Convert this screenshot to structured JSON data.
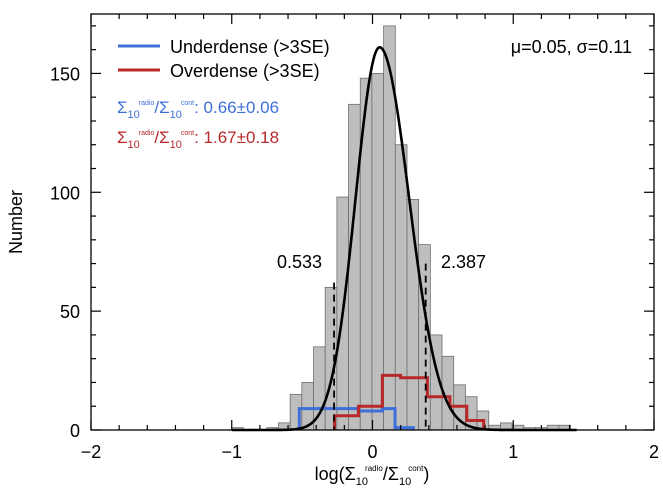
{
  "chart_data": {
    "type": "bar",
    "title": "",
    "xlabel_parts": {
      "prefix": "log(",
      "sym1": "Σ",
      "sub1": "10",
      "sup1": "radio",
      "slash": "/",
      "sym2": "Σ",
      "sub2": "10",
      "sup2": "cont",
      "suffix": ")"
    },
    "ylabel": "Number",
    "xlim": [
      -2,
      2
    ],
    "ylim": [
      0,
      175
    ],
    "xticks": [
      -2,
      -1,
      0,
      1,
      2
    ],
    "xtick_labels": [
      "−2",
      "−1",
      "0",
      "1",
      "2"
    ],
    "yticks": [
      0,
      50,
      100,
      150
    ],
    "ytick_labels": [
      "0",
      "50",
      "100",
      "150"
    ],
    "bin_width": 0.083,
    "histogram": {
      "name": "All",
      "color": "#bebebe",
      "bins": [
        {
          "x0": -1.0,
          "x1": -0.917,
          "count": 1
        },
        {
          "x0": -0.917,
          "x1": -0.834,
          "count": 0
        },
        {
          "x0": -0.834,
          "x1": -0.751,
          "count": 0
        },
        {
          "x0": -0.751,
          "x1": -0.668,
          "count": 1
        },
        {
          "x0": -0.668,
          "x1": -0.585,
          "count": 3
        },
        {
          "x0": -0.585,
          "x1": -0.502,
          "count": 15
        },
        {
          "x0": -0.502,
          "x1": -0.419,
          "count": 20
        },
        {
          "x0": -0.419,
          "x1": -0.336,
          "count": 35
        },
        {
          "x0": -0.336,
          "x1": -0.253,
          "count": 60
        },
        {
          "x0": -0.253,
          "x1": -0.17,
          "count": 98
        },
        {
          "x0": -0.17,
          "x1": -0.087,
          "count": 137
        },
        {
          "x0": -0.087,
          "x1": -0.004,
          "count": 148
        },
        {
          "x0": -0.004,
          "x1": 0.079,
          "count": 150
        },
        {
          "x0": 0.079,
          "x1": 0.162,
          "count": 170
        },
        {
          "x0": 0.162,
          "x1": 0.245,
          "count": 120
        },
        {
          "x0": 0.245,
          "x1": 0.328,
          "count": 97
        },
        {
          "x0": 0.328,
          "x1": 0.411,
          "count": 78
        },
        {
          "x0": 0.411,
          "x1": 0.494,
          "count": 40
        },
        {
          "x0": 0.494,
          "x1": 0.577,
          "count": 31
        },
        {
          "x0": 0.577,
          "x1": 0.66,
          "count": 19
        },
        {
          "x0": 0.66,
          "x1": 0.743,
          "count": 14
        },
        {
          "x0": 0.743,
          "x1": 0.826,
          "count": 8
        },
        {
          "x0": 0.826,
          "x1": 0.909,
          "count": 2
        },
        {
          "x0": 0.909,
          "x1": 0.992,
          "count": 3
        },
        {
          "x0": 0.992,
          "x1": 1.075,
          "count": 2
        },
        {
          "x0": 1.075,
          "x1": 1.158,
          "count": 1
        },
        {
          "x0": 1.158,
          "x1": 1.241,
          "count": 1
        },
        {
          "x0": 1.241,
          "x1": 1.324,
          "count": 2
        },
        {
          "x0": 1.324,
          "x1": 1.407,
          "count": 2
        }
      ]
    },
    "fit_curve": {
      "color": "#000000",
      "x_min": -1.0,
      "x_max": 1.45,
      "peak": 161,
      "center": 0.05,
      "sigma_left": 0.17,
      "sigma_right": 0.21
    },
    "series": [
      {
        "name": "Underdense (>3SE)",
        "color": "#3f6fd9",
        "edges": [
          -0.52,
          -0.27,
          -0.1,
          0.07,
          0.16,
          0.29
        ],
        "counts": [
          9,
          9,
          8,
          9,
          1
        ]
      },
      {
        "name": "Overdense (>3SE)",
        "color": "#b8292a",
        "edges": [
          -0.27,
          -0.1,
          0.07,
          0.2,
          0.39,
          0.55,
          0.67,
          0.79
        ],
        "counts": [
          6,
          10,
          23,
          22,
          14,
          10,
          4
        ]
      }
    ],
    "threshold_lines": [
      {
        "x": -0.273,
        "y_top": 62,
        "label": "0.533"
      },
      {
        "x": 0.378,
        "y_top": 70,
        "label": "2.387"
      }
    ],
    "stats_label": "μ=0.05, σ=0.11",
    "ratio_labels": [
      {
        "color": "#3f6fd9",
        "sym1": "Σ",
        "sub1": "10",
        "sup1": "radio",
        "slash": "/",
        "sym2": "Σ",
        "sub2": "10",
        "sup2": "cont",
        "value": ": 0.66±0.06"
      },
      {
        "color": "#b8292a",
        "sym1": "Σ",
        "sub1": "10",
        "sup1": "radio",
        "slash": "/",
        "sym2": "Σ",
        "sub2": "10",
        "sup2": "cont",
        "value": ": 1.67±0.18"
      }
    ],
    "legend_position": "top-left",
    "grid": false
  }
}
